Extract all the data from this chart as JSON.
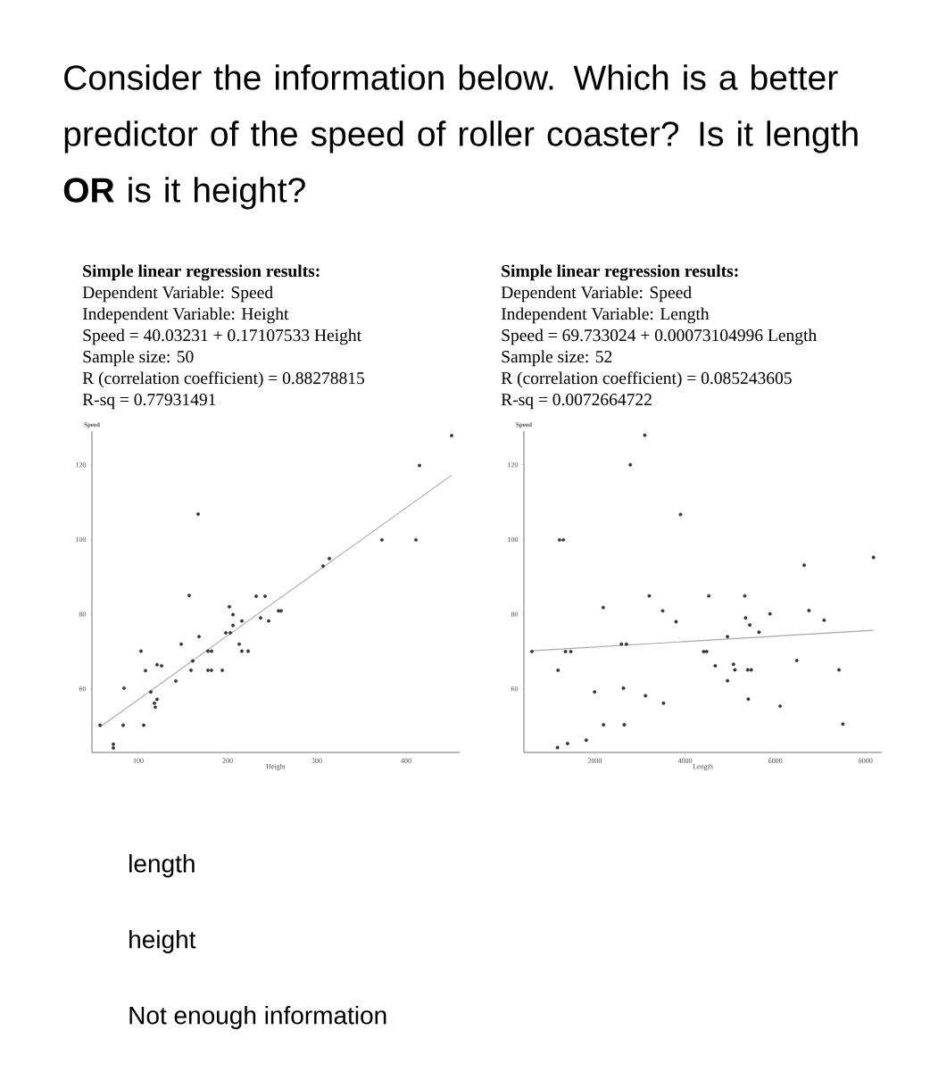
{
  "chart_data": [
    {
      "type": "other",
      "title": "Consider the information below. Which is a better predictor of the speed of roller coaster? Is it length **OR** is it height?",
      "annotations": [
        "length",
        "height",
        "Not enough information"
      ]
    },
    {
      "type": "scatter",
      "title": "Simple linear regression results:",
      "annotations": [
        "Dependent Variable: Speed",
        "Independent Variable: Height",
        "Speed = 40.03231 + 0.17107533 Height",
        "Sample size: 50",
        "R (correlation coefficient) = 0.88278815",
        "R-sq = 0.77931491"
      ],
      "xlabel": "Height",
      "ylabel": "Speed",
      "xlim": [
        48,
        460
      ],
      "ylim": [
        43,
        129
      ],
      "xticks": [
        100,
        200,
        300,
        400
      ],
      "yticks": [
        60,
        80,
        100,
        120
      ],
      "line_style": "solid",
      "series": [
        {
          "type": "scatter",
          "marker": "circle",
          "color": "#3a3a3a",
          "x": [
            57,
            72,
            72,
            84,
            83,
            103,
            106,
            108,
            114,
            118,
            119,
            121,
            121,
            126,
            142,
            148,
            157,
            159,
            161,
            167,
            168,
            178,
            182,
            178,
            182,
            194,
            198,
            203,
            202,
            206,
            206,
            213,
            216,
            216,
            223,
            232,
            237,
            242,
            246,
            257,
            260,
            307,
            314,
            373,
            411,
            415,
            451
          ],
          "values": [
            50.3,
            45.2,
            44.2,
            60.2,
            50.3,
            70.1,
            50.3,
            64.9,
            59.2,
            56.2,
            55.1,
            57.2,
            66.5,
            66.2,
            62.1,
            72,
            85,
            65,
            67.5,
            106.8,
            74,
            70.1,
            70.1,
            65,
            65,
            65,
            75,
            75,
            82,
            79.9,
            77,
            72,
            78.2,
            70.1,
            70.1,
            84.8,
            79,
            84.8,
            78.2,
            80.9,
            80.9,
            92.9,
            94.9,
            99.9,
            99.9,
            119.8,
            127.8
          ]
        },
        {
          "type": "line",
          "marker": "none",
          "color": "#a8a8a8",
          "x": [
            57,
            451
          ],
          "values": [
            49.8,
            117.2
          ]
        }
      ]
    },
    {
      "type": "scatter",
      "title": "Simple linear regression results:",
      "annotations": [
        "Dependent Variable: Speed",
        "Independent Variable: Length",
        "Speed = 69.733024 + 0.00073104996 Length",
        "Sample size: 52",
        "R (correlation coefficient) = 0.085243605",
        "R-sq = 0.0072664722"
      ],
      "xlabel": "Length",
      "ylabel": "Speed",
      "xlim": [
        430,
        8360
      ],
      "ylim": [
        43,
        129
      ],
      "xticks": [
        2000,
        4000,
        6000,
        8000
      ],
      "yticks": [
        60,
        80,
        100,
        120
      ],
      "line_style": "solid",
      "series": [
        {
          "type": "scatter",
          "marker": "circle",
          "color": "#3a3a3a",
          "x": [
            3109,
            2787,
            3900,
            1219,
            1304,
            3208,
            2187,
            3505,
            3801,
            606,
            1350,
            1469,
            2589,
            2701,
            1186,
            1996,
            2635,
            3123,
            3524,
            2194,
            2655,
            1811,
            1397,
            1173,
            4526,
            5323,
            6640,
            8175,
            5343,
            5435,
            5883,
            6746,
            7082,
            5639,
            4941,
            4413,
            4479,
            4670,
            5073,
            5105,
            5389,
            5468,
            4941,
            5402,
            6107,
            6476,
            7411,
            7497
          ],
          "values": [
            127.9,
            120,
            106.7,
            99.9,
            99.9,
            84.9,
            81.8,
            80.9,
            78,
            70,
            70,
            70,
            72,
            72,
            65,
            59.2,
            60.2,
            58.2,
            56.2,
            50.4,
            50.4,
            46.3,
            45.4,
            44.3,
            84.9,
            84.9,
            93.1,
            95.2,
            79,
            77.1,
            80.1,
            81,
            78.4,
            75.2,
            74,
            70,
            70,
            66.2,
            66.6,
            65.1,
            65.1,
            65.1,
            62.2,
            57.3,
            55.4,
            67.6,
            65.1,
            50.6
          ]
        },
        {
          "type": "line",
          "marker": "none",
          "color": "#a8a8a8",
          "x": [
            606,
            8175
          ],
          "values": [
            70.2,
            75.7
          ]
        }
      ]
    }
  ]
}
